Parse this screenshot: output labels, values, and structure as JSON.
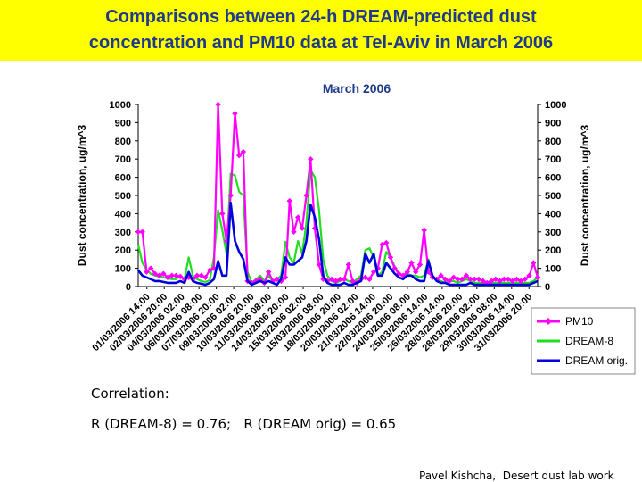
{
  "slide": {
    "title_line1": "Comparisons between 24-h DREAM-predicted dust",
    "title_line2": "concentration and PM10 data at Tel-Aviv in March 2006",
    "correlation_label": "Correlation:",
    "correlation_text": "R (DREAM-8) = 0.76;   R (DREAM orig) = 0.65",
    "credit": "Pavel Kishcha,  Desert dust lab work"
  },
  "colors": {
    "header_bg": "#ffff00",
    "title_text": "#1f3a8a",
    "pm10": "#ff00ff",
    "dream8": "#22dd22",
    "dream_orig": "#0000dd"
  },
  "chart_data": {
    "type": "line",
    "title": "March 2006",
    "ylabel_left": "Dust concentration,   ug/m^3",
    "ylabel_right": "Dust concentration,   ug/m^3",
    "ylim": [
      0,
      1000
    ],
    "yticks": [
      0,
      100,
      200,
      300,
      400,
      500,
      600,
      700,
      800,
      900,
      1000
    ],
    "grid": false,
    "legend_position": "bottom-right",
    "x_tick_labels": [
      "01/03/2006 14:00",
      "02/03/2006 20:00",
      "04/03/2006 02:00",
      "06/03/2006 08:00",
      "07/03/2006 20:00",
      "09/03/2006 02:00",
      "10/03/2006 20:00",
      "11/03/2006 08:00",
      "14/03/2006 20:00",
      "15/03/2006 02:00",
      "15/03/2006 08:00",
      "18/03/2006 20:00",
      "20/03/2006 02:00",
      "21/03/2006 14:00",
      "22/03/2006 20:00",
      "24/03/2006 08:00",
      "25/03/2006 14:00",
      "26/03/2006 14:00",
      "28/03/2006 20:00",
      "28/03/2006 02:00",
      "29/03/2006 08:00",
      "30/03/2006 14:00",
      "31/03/2006 20:00"
    ],
    "series": [
      {
        "name": "PM10",
        "marker": "diamond",
        "values": [
          300,
          300,
          80,
          100,
          70,
          60,
          70,
          50,
          60,
          60,
          55,
          40,
          50,
          40,
          60,
          60,
          50,
          90,
          100,
          1000,
          400,
          250,
          500,
          950,
          720,
          740,
          30,
          20,
          30,
          40,
          20,
          80,
          30,
          40,
          30,
          50,
          470,
          300,
          380,
          320,
          500,
          700,
          320,
          120,
          40,
          30,
          40,
          30,
          40,
          40,
          120,
          30,
          20,
          40,
          50,
          40,
          80,
          100,
          230,
          240,
          160,
          100,
          70,
          60,
          80,
          130,
          80,
          120,
          310,
          80,
          50,
          40,
          60,
          40,
          30,
          50,
          40,
          40,
          60,
          40,
          40,
          40,
          30,
          20,
          30,
          40,
          30,
          40,
          40,
          30,
          40,
          30,
          40,
          60,
          130,
          50
        ]
      },
      {
        "name": "DREAM-8",
        "values": [
          230,
          130,
          90,
          70,
          60,
          55,
          50,
          45,
          40,
          40,
          60,
          40,
          160,
          60,
          40,
          30,
          25,
          35,
          160,
          420,
          310,
          180,
          620,
          610,
          520,
          500,
          80,
          20,
          40,
          60,
          30,
          60,
          30,
          40,
          60,
          245,
          160,
          130,
          250,
          180,
          350,
          640,
          600,
          420,
          150,
          60,
          30,
          20,
          30,
          40,
          30,
          20,
          40,
          60,
          200,
          210,
          160,
          60,
          80,
          190,
          160,
          110,
          70,
          60,
          70,
          60,
          60,
          50,
          60,
          150,
          50,
          40,
          30,
          20,
          30,
          30,
          20,
          30,
          40,
          30,
          20,
          20,
          20,
          20,
          20,
          20,
          20,
          20,
          20,
          20,
          20,
          20,
          20,
          20,
          30,
          50
        ]
      },
      {
        "name": "DREAM orig.",
        "values": [
          90,
          60,
          50,
          40,
          30,
          30,
          25,
          20,
          20,
          20,
          30,
          20,
          80,
          30,
          20,
          15,
          10,
          20,
          40,
          140,
          60,
          60,
          460,
          250,
          190,
          150,
          30,
          10,
          20,
          30,
          20,
          30,
          20,
          10,
          40,
          160,
          120,
          120,
          140,
          160,
          250,
          450,
          380,
          260,
          60,
          20,
          10,
          10,
          10,
          20,
          10,
          10,
          20,
          30,
          180,
          130,
          180,
          60,
          60,
          130,
          100,
          70,
          50,
          40,
          60,
          60,
          40,
          30,
          30,
          140,
          60,
          30,
          20,
          20,
          10,
          10,
          10,
          10,
          10,
          20,
          10,
          10,
          10,
          10,
          10,
          10,
          10,
          10,
          10,
          10,
          10,
          10,
          10,
          10,
          20,
          30
        ]
      }
    ]
  }
}
